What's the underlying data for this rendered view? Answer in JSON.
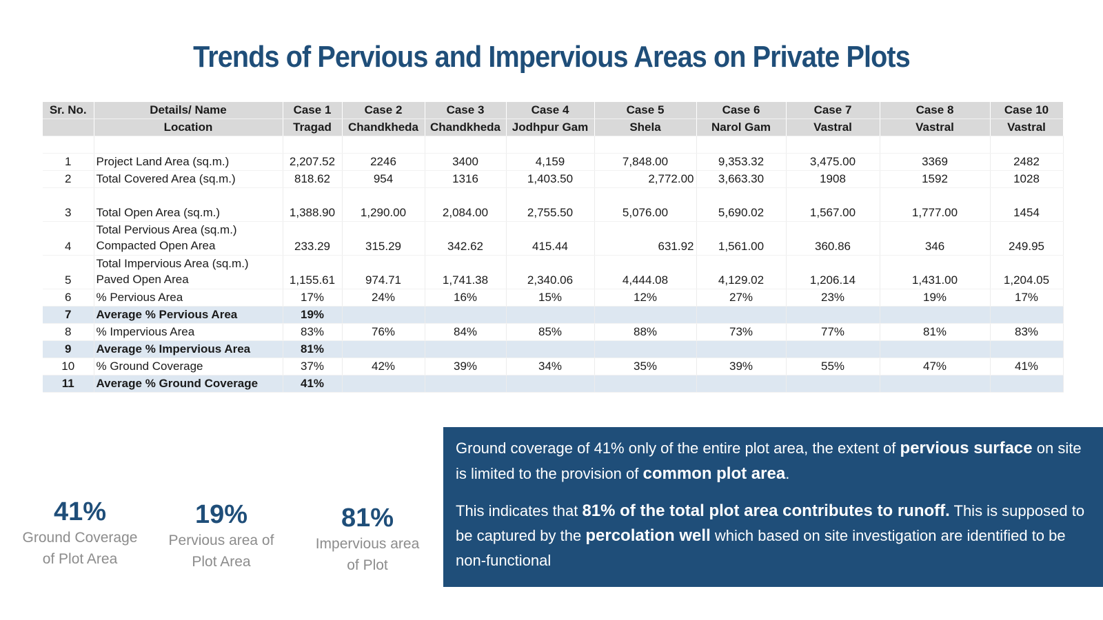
{
  "title": "Trends of Pervious and Impervious Areas on Private Plots",
  "table": {
    "header_row1": [
      "Sr. No.",
      "Details/ Name",
      "Case 1",
      "Case 2",
      "Case 3",
      "Case 4",
      "Case 5",
      "Case 6",
      "Case 7",
      "Case 8",
      "Case 10"
    ],
    "header_row2": [
      "",
      "Location",
      "Tragad",
      "Chandkheda",
      "Chandkheda",
      "Jodhpur Gam",
      "Shela",
      "Narol Gam",
      "Vastral",
      "Vastral",
      "Vastral"
    ],
    "rows": [
      {
        "sr": "1",
        "detail": "Project Land Area (sq.m.)",
        "detail2": "",
        "values": [
          "2,207.52",
          "2246",
          "3400",
          "4,159",
          "7,848.00",
          "9,353.32",
          "3,475.00",
          "3369",
          "2482"
        ]
      },
      {
        "sr": "2",
        "detail": "Total Covered Area (sq.m.)",
        "detail2": "",
        "values": [
          "818.62",
          "954",
          "1316",
          "1,403.50",
          "2,772.00",
          "3,663.30",
          "1908",
          "1592",
          "1028"
        ]
      },
      {
        "sr": "3",
        "detail": "Total Open Area (sq.m.)",
        "detail2": "",
        "values": [
          "1,388.90",
          "1,290.00",
          "2,084.00",
          "2,755.50",
          "5,076.00",
          "5,690.02",
          "1,567.00",
          "1,777.00",
          "1454"
        ]
      },
      {
        "sr": "4",
        "detail": "Total Pervious Area (sq.m.)",
        "detail2": "Compacted Open Area",
        "values": [
          "233.29",
          "315.29",
          "342.62",
          "415.44",
          "631.92",
          "1,561.00",
          "360.86",
          "346",
          "249.95"
        ]
      },
      {
        "sr": "5",
        "detail": "Total Impervious Area (sq.m.)",
        "detail2": "Paved Open Area",
        "values": [
          "1,155.61",
          "974.71",
          "1,741.38",
          "2,340.06",
          "4,444.08",
          "4,129.02",
          "1,206.14",
          "1,431.00",
          "1,204.05"
        ]
      },
      {
        "sr": "6",
        "detail": "% Pervious Area",
        "detail2": "",
        "values": [
          "17%",
          "24%",
          "16%",
          "15%",
          "12%",
          "27%",
          "23%",
          "19%",
          "17%"
        ]
      },
      {
        "sr": "7",
        "detail": "Average % Pervious Area",
        "detail2": "",
        "values": [
          "19%",
          "",
          "",
          "",
          "",
          "",
          "",
          "",
          ""
        ]
      },
      {
        "sr": "8",
        "detail": "% Impervious Area",
        "detail2": "",
        "values": [
          "83%",
          "76%",
          "84%",
          "85%",
          "88%",
          "73%",
          "77%",
          "81%",
          "83%"
        ]
      },
      {
        "sr": "9",
        "detail": "Average % Impervious Area",
        "detail2": "",
        "values": [
          "81%",
          "",
          "",
          "",
          "",
          "",
          "",
          "",
          ""
        ]
      },
      {
        "sr": "10",
        "detail": "% Ground Coverage",
        "detail2": "",
        "values": [
          "37%",
          "42%",
          "39%",
          "34%",
          "35%",
          "39%",
          "55%",
          "47%",
          "41%"
        ]
      },
      {
        "sr": "11",
        "detail": "Average % Ground Coverage",
        "detail2": "",
        "values": [
          "41%",
          "",
          "",
          "",
          "",
          "",
          "",
          "",
          ""
        ]
      }
    ]
  },
  "stats": [
    {
      "value": "41%",
      "label_line1": "Ground Coverage",
      "label_line2": "of Plot Area"
    },
    {
      "value": "19%",
      "label_line1": "Pervious area of",
      "label_line2": "Plot Area"
    },
    {
      "value": "81%",
      "label_line1": "Impervious area",
      "label_line2": "of Plot"
    }
  ],
  "note": {
    "p1_a": "Ground coverage of 41% only of the entire plot area, the extent of ",
    "p1_b": "pervious surface",
    "p1_c": " on site is limited to the provision of ",
    "p1_d": "common plot area",
    "p1_e": ".",
    "p2_a": "This indicates that ",
    "p2_b": "81% of the total plot area contributes to runoff.",
    "p2_c": " This is supposed to be captured by the ",
    "p2_d": "percolation well",
    "p2_e": " which based on site investigation are identified to be non-functional"
  },
  "colors": {
    "title": "#1f4e79",
    "header_bg": "#d9d9d9",
    "avg_row_bg": "#dde7f1",
    "note_bg": "#1f4e79",
    "stat_value": "#1f4e79",
    "stat_label": "#8c8c8c"
  }
}
